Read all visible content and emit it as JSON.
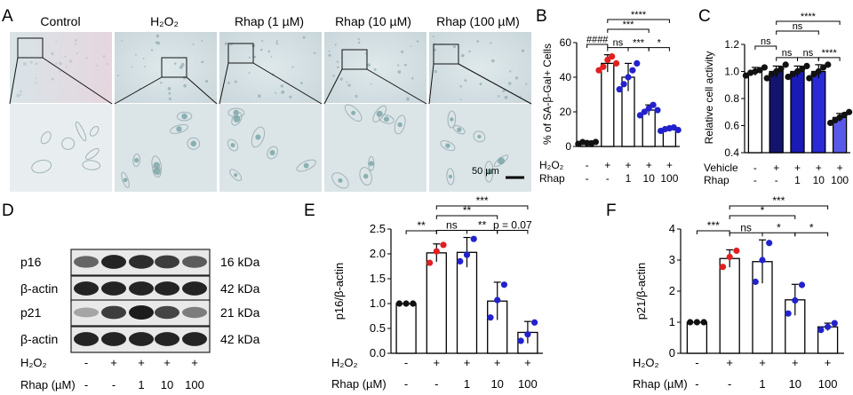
{
  "figure": {
    "panel_labels": [
      "A",
      "B",
      "C",
      "D",
      "E",
      "F"
    ],
    "panelA": {
      "labels": [
        "Control",
        "H₂O₂",
        "Rhap (1 µM)",
        "Rhap (10 µM)",
        "Rhap (100 µM)"
      ],
      "scale_bar": "50 µm"
    },
    "panelD": {
      "bands": [
        "p16",
        "β-actin",
        "p21",
        "β-actin"
      ],
      "kda": [
        "16 kDa",
        "42 kDa",
        "21 kDa",
        "42 kDa"
      ],
      "h2o2_label": "H₂O₂",
      "rhap_label": "Rhap (µM)",
      "h2o2_signs": [
        "-",
        "+",
        "+",
        "+",
        "+"
      ],
      "rhap_signs": [
        "-",
        "-",
        "1",
        "10",
        "100"
      ]
    }
  },
  "chart_data": [
    {
      "id": "B",
      "type": "bar",
      "ylabel": "% of SA-β-Gal+ Cells",
      "ylim": [
        0,
        60
      ],
      "yticks": [
        "0",
        "20",
        "40",
        "60"
      ],
      "values": [
        2,
        48,
        40,
        21,
        10
      ],
      "errors": [
        1,
        5,
        8,
        3,
        1
      ],
      "fills": [
        "#ffffff",
        "#ffffff",
        "#ffffff",
        "#ffffff",
        "#ffffff"
      ],
      "dot_colors": [
        "#111111",
        "#e02020",
        "#2222cc",
        "#2222cc",
        "#2222cc"
      ],
      "points": [
        [
          1.5,
          2.5,
          2,
          1.8,
          2.6
        ],
        [
          44,
          46,
          50,
          52,
          48
        ],
        [
          33,
          36,
          40,
          44,
          48
        ],
        [
          18,
          20,
          22,
          24,
          21
        ],
        [
          9,
          10,
          10.5,
          11,
          9.5
        ]
      ],
      "row_labels": [
        "H₂O₂",
        "Rhap"
      ],
      "rows": [
        [
          "-",
          "+",
          "+",
          "+",
          "+"
        ],
        [
          "-",
          "-",
          "1",
          "10",
          "100"
        ]
      ],
      "annotations": [
        {
          "from": 0,
          "to": 1,
          "level": 0,
          "text": "####"
        },
        {
          "from": 1,
          "to": 2,
          "level": 0,
          "text": "ns"
        },
        {
          "from": 2,
          "to": 3,
          "level": 0,
          "text": "***"
        },
        {
          "from": 3,
          "to": 4,
          "level": 0,
          "text": "*"
        },
        {
          "from": 1,
          "to": 3,
          "level": 1,
          "text": "***"
        },
        {
          "from": 1,
          "to": 4,
          "level": 2,
          "text": "****"
        }
      ]
    },
    {
      "id": "C",
      "type": "bar",
      "ylabel": "Relative cell activity",
      "ylim": [
        0.4,
        1.2
      ],
      "yticks": [
        "0.4",
        "0.6",
        "0.8",
        "1.0",
        "1.2"
      ],
      "values": [
        1.0,
        1.0,
        1.0,
        1.0,
        0.66
      ],
      "errors": [
        0.03,
        0.04,
        0.04,
        0.05,
        0.03
      ],
      "fills": [
        "#ffffff",
        "#14146e",
        "#1a1ab4",
        "#2a2ad6",
        "#5a5ae8"
      ],
      "dot_colors": [
        "#111111",
        "#111111",
        "#111111",
        "#111111",
        "#111111"
      ],
      "points": [
        [
          0.97,
          0.99,
          1.0,
          1.01,
          1.03
        ],
        [
          0.95,
          0.98,
          1.0,
          1.02,
          1.05
        ],
        [
          0.96,
          0.98,
          1.0,
          1.02,
          1.04
        ],
        [
          0.95,
          0.98,
          1.0,
          1.03,
          1.05
        ],
        [
          0.62,
          0.64,
          0.66,
          0.68,
          0.7
        ]
      ],
      "row_labels": [
        "Vehicle",
        "Rhap"
      ],
      "rows": [
        [
          "-",
          "+",
          "+",
          "+",
          "+"
        ],
        [
          "-",
          "-",
          "1",
          "10",
          "100"
        ]
      ],
      "annotations": [
        {
          "from": 0,
          "to": 1,
          "level": 0,
          "text": "ns"
        },
        {
          "from": 1,
          "to": 2,
          "level": 0,
          "text": "ns"
        },
        {
          "from": 2,
          "to": 3,
          "level": 0,
          "text": "ns"
        },
        {
          "from": 3,
          "to": 4,
          "level": 0,
          "text": "****"
        },
        {
          "from": 1,
          "to": 3,
          "level": 1,
          "text": "ns"
        },
        {
          "from": 1,
          "to": 4,
          "level": 2,
          "text": "****"
        }
      ]
    },
    {
      "id": "E",
      "type": "bar",
      "ylabel": "p16/β-actin",
      "ylim": [
        0,
        2.5
      ],
      "yticks": [
        "0.0",
        "0.5",
        "1.0",
        "1.5",
        "2.0",
        "2.5"
      ],
      "values": [
        1.0,
        2.02,
        2.03,
        1.05,
        0.42
      ],
      "errors": [
        0,
        0.18,
        0.3,
        0.38,
        0.22
      ],
      "fills": [
        "#ffffff",
        "#ffffff",
        "#ffffff",
        "#ffffff",
        "#ffffff"
      ],
      "dot_colors": [
        "#111111",
        "#e02020",
        "#2222cc",
        "#2222cc",
        "#2222cc"
      ],
      "points": [
        [
          1.0,
          1.0,
          1.0
        ],
        [
          1.82,
          2.05,
          2.18
        ],
        [
          1.85,
          1.98,
          2.3
        ],
        [
          0.72,
          1.07,
          1.38
        ],
        [
          0.25,
          0.38,
          0.62
        ]
      ],
      "row_labels": [
        "H₂O₂",
        "Rhap (µM)"
      ],
      "rows": [
        [
          "-",
          "+",
          "+",
          "+",
          "+"
        ],
        [
          "-",
          "-",
          "1",
          "10",
          "100"
        ]
      ],
      "annotations": [
        {
          "from": 0,
          "to": 1,
          "level": 0,
          "text": "**"
        },
        {
          "from": 1,
          "to": 2,
          "level": 0,
          "text": "ns"
        },
        {
          "from": 2,
          "to": 3,
          "level": 0,
          "text": "**"
        },
        {
          "from": 3,
          "to": 4,
          "level": 0,
          "text": "p = 0.07"
        },
        {
          "from": 1,
          "to": 3,
          "level": 1,
          "text": "**"
        },
        {
          "from": 1,
          "to": 4,
          "level": 2,
          "text": "***"
        }
      ]
    },
    {
      "id": "F",
      "type": "bar",
      "ylabel": "p21/β-actin",
      "ylim": [
        0,
        4
      ],
      "yticks": [
        "0",
        "1",
        "2",
        "3",
        "4"
      ],
      "values": [
        1.0,
        3.05,
        2.95,
        1.72,
        0.85
      ],
      "errors": [
        0,
        0.28,
        0.7,
        0.5,
        0.12
      ],
      "fills": [
        "#ffffff",
        "#ffffff",
        "#ffffff",
        "#ffffff",
        "#ffffff"
      ],
      "dot_colors": [
        "#111111",
        "#e02020",
        "#2222cc",
        "#2222cc",
        "#2222cc"
      ],
      "points": [
        [
          1.0,
          1.0,
          1.0
        ],
        [
          2.78,
          3.1,
          3.3
        ],
        [
          2.3,
          3.0,
          3.55
        ],
        [
          1.28,
          1.7,
          2.2
        ],
        [
          0.75,
          0.85,
          0.97
        ]
      ],
      "row_labels": [
        "H₂O₂",
        "Rhap (µM)"
      ],
      "rows": [
        [
          "-",
          "+",
          "+",
          "+",
          "+"
        ],
        [
          "-",
          "-",
          "1",
          "10",
          "100"
        ]
      ],
      "annotations": [
        {
          "from": 0,
          "to": 1,
          "level": 0,
          "text": "***"
        },
        {
          "from": 1,
          "to": 2,
          "level": 0,
          "text": "ns"
        },
        {
          "from": 2,
          "to": 3,
          "level": 0,
          "text": "*"
        },
        {
          "from": 3,
          "to": 4,
          "level": 0,
          "text": "*"
        },
        {
          "from": 1,
          "to": 3,
          "level": 1,
          "text": "*"
        },
        {
          "from": 1,
          "to": 4,
          "level": 2,
          "text": "***"
        }
      ]
    }
  ]
}
